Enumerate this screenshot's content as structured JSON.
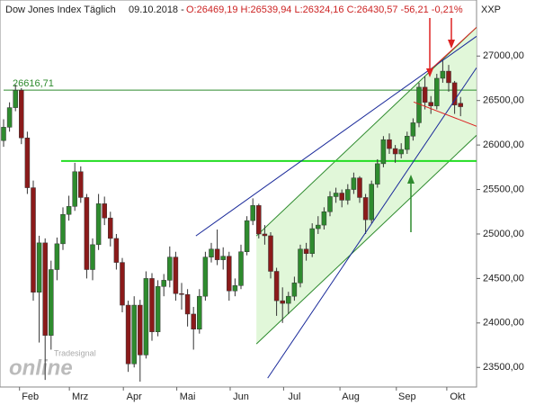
{
  "chart_data": {
    "type": "candlestick",
    "title": "Dow Jones Index Täglich",
    "date": "09.10.2018 -",
    "quote": "O:26469,19 H:26539,94 L:26324,16 C:26430,57 -56,21 -0,21%",
    "symbol": "XXP",
    "watermark": [
      "Tradesignal",
      "online"
    ],
    "up_color": "#2e8b2e",
    "down_color": "#8b1a1a",
    "ylim": [
      23280,
      27630
    ],
    "yticks": [
      {
        "value": 23500,
        "label": "23500,00"
      },
      {
        "value": 24000,
        "label": "24000,00"
      },
      {
        "value": 24500,
        "label": "24500,00"
      },
      {
        "value": 25000,
        "label": "25000,00"
      },
      {
        "value": 25500,
        "label": "25500,00"
      },
      {
        "value": 26000,
        "label": "26000,00"
      },
      {
        "value": 26500,
        "label": "26500,00"
      },
      {
        "value": 27000,
        "label": "27000,00"
      }
    ],
    "xticks": [
      {
        "value": 4.5,
        "label": "Feb"
      },
      {
        "value": 12.9,
        "label": "Mrz"
      },
      {
        "value": 22,
        "label": "Apr"
      },
      {
        "value": 31,
        "label": "Mai"
      },
      {
        "value": 40,
        "label": "Jun"
      },
      {
        "value": 49,
        "label": "Jul"
      },
      {
        "value": 58.5,
        "label": "Aug"
      },
      {
        "value": 68,
        "label": "Sep"
      },
      {
        "value": 76.5,
        "label": "Okt"
      }
    ],
    "candles": [
      [
        26050,
        26290,
        25980,
        26200
      ],
      [
        26200,
        26480,
        26150,
        26420
      ],
      [
        26420,
        26680,
        26380,
        26616
      ],
      [
        26616,
        26640,
        26010,
        26080
      ],
      [
        26080,
        26150,
        25450,
        25520
      ],
      [
        25520,
        25600,
        24250,
        24345
      ],
      [
        24345,
        24980,
        23780,
        24900
      ],
      [
        24900,
        24950,
        23360,
        23860
      ],
      [
        23860,
        24700,
        23700,
        24600
      ],
      [
        24600,
        24960,
        24480,
        24890
      ],
      [
        24890,
        25300,
        24820,
        25220
      ],
      [
        25220,
        25430,
        25150,
        25310
      ],
      [
        25310,
        25800,
        25260,
        25700
      ],
      [
        25700,
        25760,
        25350,
        25410
      ],
      [
        25410,
        25450,
        24500,
        24600
      ],
      [
        24600,
        24950,
        24480,
        24880
      ],
      [
        24880,
        25450,
        24820,
        25340
      ],
      [
        25340,
        25420,
        25100,
        25180
      ],
      [
        25180,
        25250,
        24860,
        24950
      ],
      [
        24950,
        25000,
        24600,
        24680
      ],
      [
        24680,
        24730,
        24120,
        24200
      ],
      [
        24200,
        24250,
        23450,
        23540
      ],
      [
        23540,
        24300,
        23500,
        24200
      ],
      [
        24200,
        24260,
        23340,
        23640
      ],
      [
        23640,
        24580,
        23600,
        24500
      ],
      [
        24500,
        24560,
        23800,
        23900
      ],
      [
        23900,
        24480,
        23850,
        24410
      ],
      [
        24410,
        24550,
        24300,
        24480
      ],
      [
        24480,
        24860,
        24400,
        24740
      ],
      [
        24740,
        24800,
        24250,
        24330
      ],
      [
        24330,
        24450,
        24150,
        24320
      ],
      [
        24320,
        24380,
        23960,
        24100
      ],
      [
        24100,
        24180,
        23700,
        23930
      ],
      [
        23930,
        24380,
        23880,
        24300
      ],
      [
        24300,
        24800,
        24250,
        24740
      ],
      [
        24740,
        24900,
        24680,
        24830
      ],
      [
        24830,
        25050,
        24650,
        24710
      ],
      [
        24710,
        24850,
        24600,
        24750
      ],
      [
        24750,
        24800,
        24250,
        24360
      ],
      [
        24360,
        24500,
        24300,
        24420
      ],
      [
        24420,
        24880,
        24380,
        24800
      ],
      [
        24800,
        25200,
        24760,
        25150
      ],
      [
        25150,
        25400,
        25100,
        25320
      ],
      [
        25320,
        25340,
        24950,
        25000
      ],
      [
        25000,
        25100,
        24880,
        24980
      ],
      [
        24980,
        25020,
        24500,
        24580
      ],
      [
        24580,
        24620,
        24080,
        24250
      ],
      [
        24250,
        24400,
        24000,
        24220
      ],
      [
        24220,
        24350,
        24100,
        24300
      ],
      [
        24300,
        24520,
        24250,
        24450
      ],
      [
        24450,
        24880,
        24400,
        24830
      ],
      [
        24830,
        24900,
        24700,
        24780
      ],
      [
        24780,
        25120,
        24740,
        25060
      ],
      [
        25060,
        25200,
        25000,
        25100
      ],
      [
        25100,
        25300,
        25050,
        25250
      ],
      [
        25250,
        25480,
        25200,
        25420
      ],
      [
        25420,
        25520,
        25350,
        25460
      ],
      [
        25460,
        25500,
        25300,
        25380
      ],
      [
        25380,
        25560,
        25330,
        25500
      ],
      [
        25500,
        25690,
        25450,
        25630
      ],
      [
        25630,
        25650,
        25350,
        25410
      ],
      [
        25410,
        25450,
        25000,
        25160
      ],
      [
        25160,
        25600,
        25120,
        25560
      ],
      [
        25560,
        25840,
        25520,
        25790
      ],
      [
        25790,
        26100,
        25750,
        26060
      ],
      [
        26060,
        26130,
        25900,
        25960
      ],
      [
        25960,
        26000,
        25800,
        25900
      ],
      [
        25900,
        26020,
        25850,
        25950
      ],
      [
        25950,
        26150,
        25900,
        26100
      ],
      [
        26100,
        26300,
        26050,
        26250
      ],
      [
        26250,
        26700,
        26200,
        26650
      ],
      [
        26650,
        26770,
        26400,
        26480
      ],
      [
        26480,
        26550,
        26350,
        26440
      ],
      [
        26440,
        26800,
        26400,
        26750
      ],
      [
        26750,
        26950,
        26700,
        26830
      ],
      [
        26830,
        26900,
        26600,
        26700
      ],
      [
        26700,
        26720,
        26350,
        26450
      ],
      [
        26469.19,
        26539.94,
        26324.16,
        26430.57
      ]
    ],
    "hlines": [
      {
        "value": 26616.71,
        "label": "26616,71",
        "color": "#2e8b2e",
        "from": 0
      },
      {
        "value": 25820,
        "color": "#22dd22",
        "from": 9.7
      }
    ],
    "channel": {
      "color": "#d9f5d0",
      "top": [
        [
          42.6,
          24978
        ],
        [
          79.7,
          27323
        ]
      ],
      "bottom": [
        [
          42.6,
          23764
        ],
        [
          79.7,
          26110
        ]
      ]
    },
    "trendlines": [
      {
        "color": "#1a2a9a",
        "points": [
          [
            32.4,
            24978
          ],
          [
            79.7,
            27222
          ]
        ]
      },
      {
        "color": "#1a2a9a",
        "points": [
          [
            44.5,
            23380
          ],
          [
            79.7,
            26869
          ]
        ]
      },
      {
        "color": "#dd2222",
        "points": [
          [
            69.1,
            26484
          ],
          [
            79.7,
            26211
          ]
        ]
      },
      {
        "color": "#dd2222",
        "points": [
          [
            71.8,
            26838
          ],
          [
            79.7,
            27323
          ]
        ]
      }
    ]
  }
}
